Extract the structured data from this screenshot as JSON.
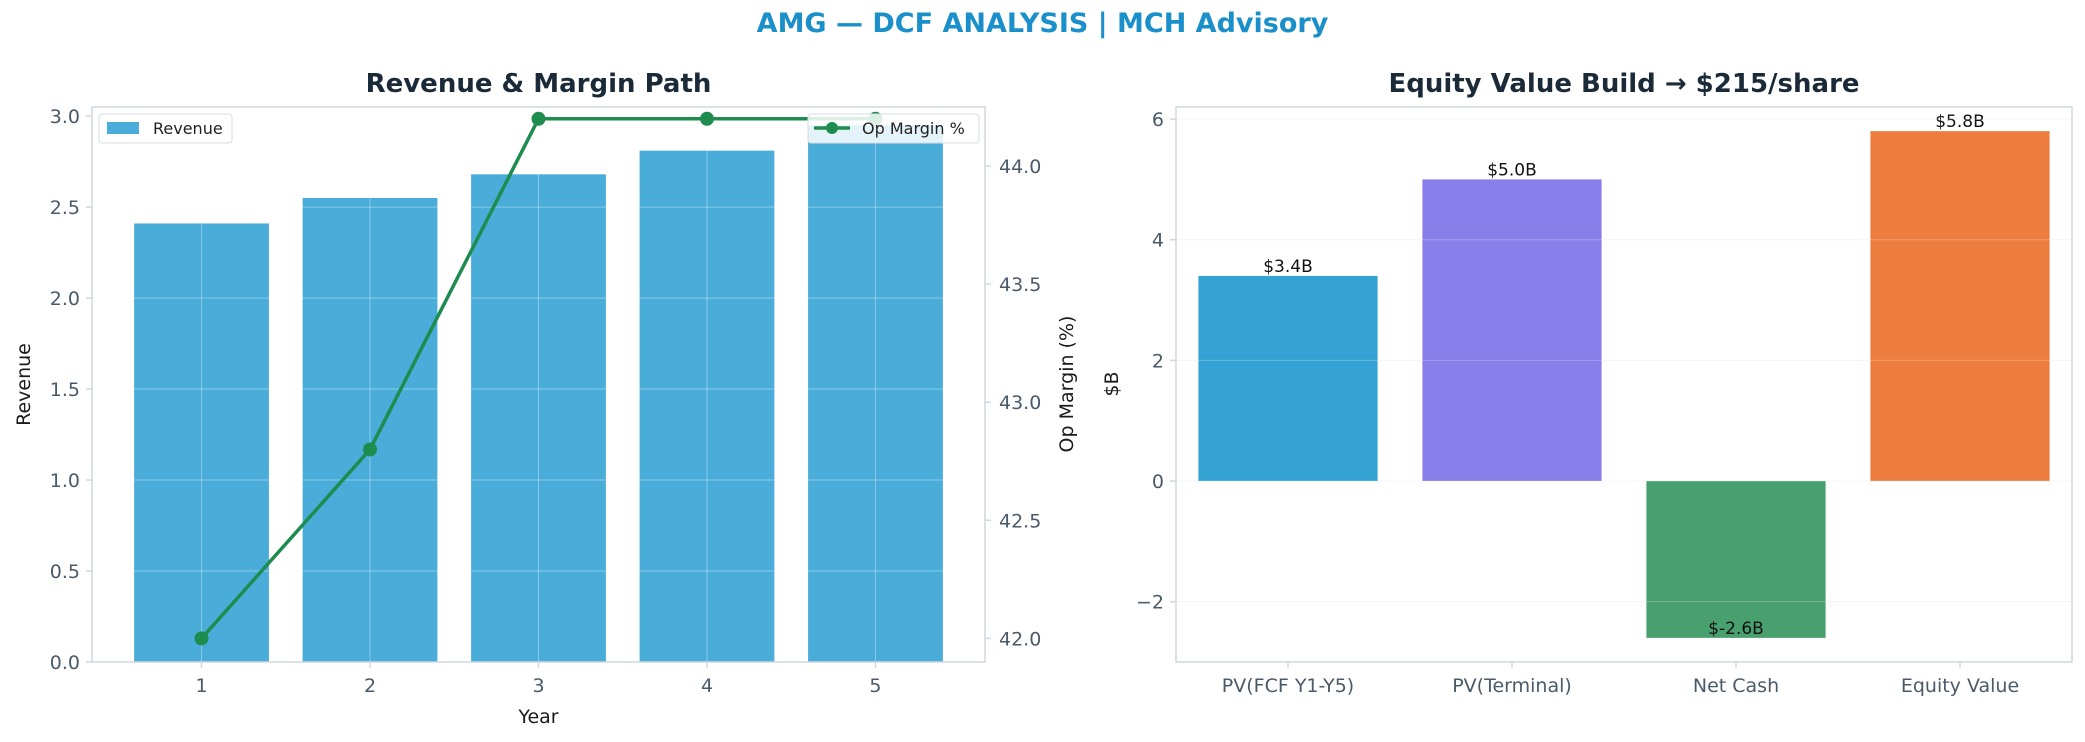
{
  "header": {
    "title": "AMG — DCF ANALYSIS | MCH Advisory"
  },
  "chart_data": [
    {
      "type": "bar+line",
      "title": "Revenue & Margin Path",
      "xlabel": "Year",
      "ylabel": "Revenue",
      "y2label": "Op Margin (%)",
      "categories": [
        "1",
        "2",
        "3",
        "4",
        "5"
      ],
      "ylim": [
        0,
        3.05
      ],
      "y2lim": [
        41.9,
        44.25
      ],
      "yticks": [
        "0.0",
        "0.5",
        "1.0",
        "1.5",
        "2.0",
        "2.5",
        "3.0"
      ],
      "y2ticks": [
        "42.0",
        "42.5",
        "43.0",
        "43.5",
        "44.0"
      ],
      "grid": true,
      "series": [
        {
          "name": "Revenue",
          "type": "bar",
          "color": "#4aadd9",
          "values": [
            2.41,
            2.55,
            2.68,
            2.81,
            2.95
          ]
        },
        {
          "name": "Op Margin %",
          "type": "line",
          "axis": "right",
          "color": "#1e8c4e",
          "values": [
            42.0,
            42.8,
            44.2,
            44.2,
            44.2
          ]
        }
      ],
      "legend": [
        {
          "label": "Revenue",
          "placement": "top-left"
        },
        {
          "label": "Op Margin %",
          "placement": "top-right"
        }
      ]
    },
    {
      "type": "bar",
      "title": "Equity Value Build → $215/share",
      "ylabel": "$B",
      "categories": [
        "PV(FCF Y1-Y5)",
        "PV(Terminal)",
        "Net Cash",
        "Equity Value"
      ],
      "values": [
        3.4,
        5.0,
        -2.6,
        5.8
      ],
      "data_labels": [
        "$3.4B",
        "$5.0B",
        "$-2.6B",
        "$5.8B"
      ],
      "colors": [
        "#34a3d4",
        "#8a7eea",
        "#48a06e",
        "#ed7d3e"
      ],
      "ylim": [
        -3,
        6.2
      ],
      "yticks": [
        "−2",
        "0",
        "2",
        "4",
        "6"
      ],
      "ytick_values": [
        -2,
        0,
        2,
        4,
        6
      ],
      "grid": true
    }
  ]
}
